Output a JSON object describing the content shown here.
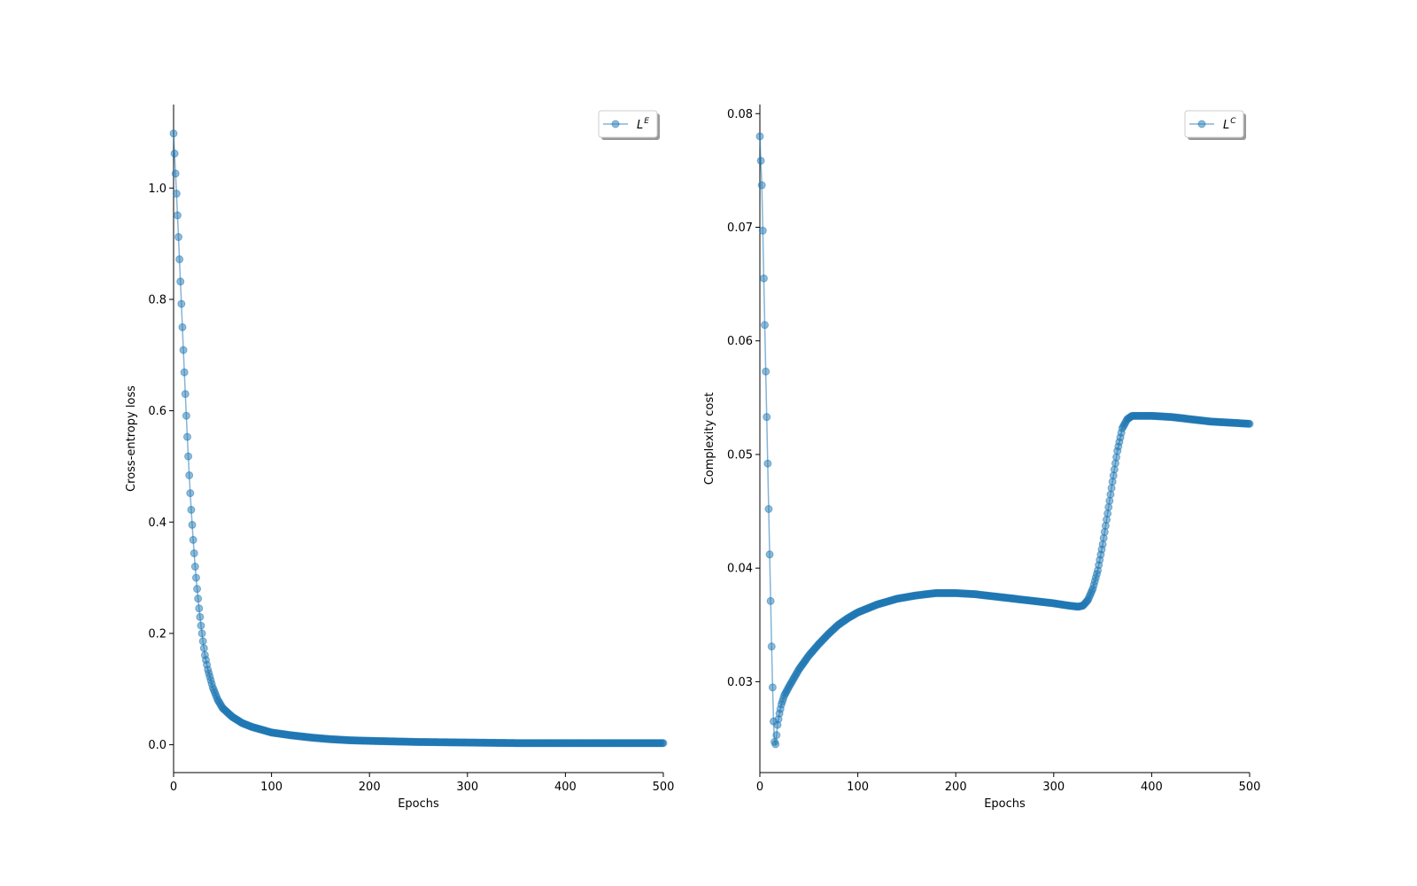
{
  "chart_data": [
    {
      "type": "line",
      "xlabel": "Epochs",
      "ylabel": "Cross-entropy loss",
      "xlim": [
        0,
        500
      ],
      "ylim": [
        -0.05,
        1.15
      ],
      "xticks": [
        0,
        100,
        200,
        300,
        400,
        500
      ],
      "yticks": [
        0.0,
        0.2,
        0.4,
        0.6,
        0.8,
        1.0
      ],
      "ytick_decimals": 1,
      "grid": false,
      "legend": "top-right",
      "marker": "circle",
      "color": "#1f77b4",
      "series": [
        {
          "name": "L",
          "name_sup": "E",
          "points": [
            [
              0,
              1.098
            ],
            [
              1,
              1.062
            ],
            [
              2,
              1.026
            ],
            [
              3,
              0.99
            ],
            [
              4,
              0.951
            ],
            [
              5,
              0.912
            ],
            [
              6,
              0.872
            ],
            [
              7,
              0.832
            ],
            [
              8,
              0.792
            ],
            [
              9,
              0.75
            ],
            [
              10,
              0.709
            ],
            [
              11,
              0.669
            ],
            [
              12,
              0.63
            ],
            [
              13,
              0.591
            ],
            [
              14,
              0.553
            ],
            [
              15,
              0.518
            ],
            [
              16,
              0.484
            ],
            [
              17,
              0.452
            ],
            [
              18,
              0.422
            ],
            [
              20,
              0.368
            ],
            [
              22,
              0.32
            ],
            [
              24,
              0.28
            ],
            [
              26,
              0.245
            ],
            [
              28,
              0.214
            ],
            [
              30,
              0.186
            ],
            [
              32,
              0.161
            ],
            [
              35,
              0.135
            ],
            [
              40,
              0.103
            ],
            [
              45,
              0.081
            ],
            [
              50,
              0.066
            ],
            [
              60,
              0.05
            ],
            [
              70,
              0.039
            ],
            [
              80,
              0.032
            ],
            [
              90,
              0.027
            ],
            [
              100,
              0.022
            ],
            [
              120,
              0.017
            ],
            [
              140,
              0.013
            ],
            [
              160,
              0.01
            ],
            [
              180,
              0.008
            ],
            [
              200,
              0.007
            ],
            [
              250,
              0.005
            ],
            [
              300,
              0.004
            ],
            [
              350,
              0.003
            ],
            [
              400,
              0.003
            ],
            [
              450,
              0.003
            ],
            [
              500,
              0.003
            ]
          ]
        }
      ]
    },
    {
      "type": "line",
      "xlabel": "Epochs",
      "ylabel": "Complexity cost",
      "xlim": [
        0,
        500
      ],
      "ylim": [
        0.022,
        0.0808
      ],
      "xticks": [
        0,
        100,
        200,
        300,
        400,
        500
      ],
      "yticks": [
        0.03,
        0.04,
        0.05,
        0.06,
        0.07,
        0.08
      ],
      "ytick_decimals": 2,
      "grid": false,
      "legend": "top-right",
      "marker": "circle",
      "color": "#1f77b4",
      "series": [
        {
          "name": "L",
          "name_sup": "C",
          "points": [
            [
              0,
              0.078
            ],
            [
              2,
              0.0737
            ],
            [
              3,
              0.0697
            ],
            [
              4,
              0.0655
            ],
            [
              5,
              0.0614
            ],
            [
              6,
              0.0573
            ],
            [
              7,
              0.0533
            ],
            [
              8,
              0.0492
            ],
            [
              9,
              0.0452
            ],
            [
              10,
              0.0412
            ],
            [
              11,
              0.0371
            ],
            [
              12,
              0.0331
            ],
            [
              13,
              0.0295
            ],
            [
              14,
              0.0265
            ],
            [
              15,
              0.0247
            ],
            [
              16,
              0.0245
            ],
            [
              17,
              0.0253
            ],
            [
              18,
              0.0262
            ],
            [
              20,
              0.0272
            ],
            [
              22,
              0.028
            ],
            [
              25,
              0.0288
            ],
            [
              30,
              0.0296
            ],
            [
              40,
              0.0311
            ],
            [
              50,
              0.0323
            ],
            [
              60,
              0.0333
            ],
            [
              70,
              0.0342
            ],
            [
              80,
              0.035
            ],
            [
              90,
              0.0356
            ],
            [
              100,
              0.0361
            ],
            [
              120,
              0.0368
            ],
            [
              140,
              0.0373
            ],
            [
              160,
              0.0376
            ],
            [
              180,
              0.0378
            ],
            [
              200,
              0.0378
            ],
            [
              220,
              0.0377
            ],
            [
              240,
              0.0375
            ],
            [
              260,
              0.0373
            ],
            [
              280,
              0.0371
            ],
            [
              300,
              0.0369
            ],
            [
              315,
              0.0367
            ],
            [
              325,
              0.0366
            ],
            [
              330,
              0.0367
            ],
            [
              335,
              0.0372
            ],
            [
              340,
              0.0382
            ],
            [
              345,
              0.0398
            ],
            [
              350,
              0.0421
            ],
            [
              355,
              0.0448
            ],
            [
              360,
              0.0476
            ],
            [
              365,
              0.0503
            ],
            [
              370,
              0.0523
            ],
            [
              375,
              0.0531
            ],
            [
              380,
              0.0534
            ],
            [
              390,
              0.0534
            ],
            [
              400,
              0.0534
            ],
            [
              420,
              0.0533
            ],
            [
              440,
              0.0531
            ],
            [
              460,
              0.0529
            ],
            [
              480,
              0.0528
            ],
            [
              500,
              0.0527
            ]
          ]
        }
      ]
    }
  ]
}
